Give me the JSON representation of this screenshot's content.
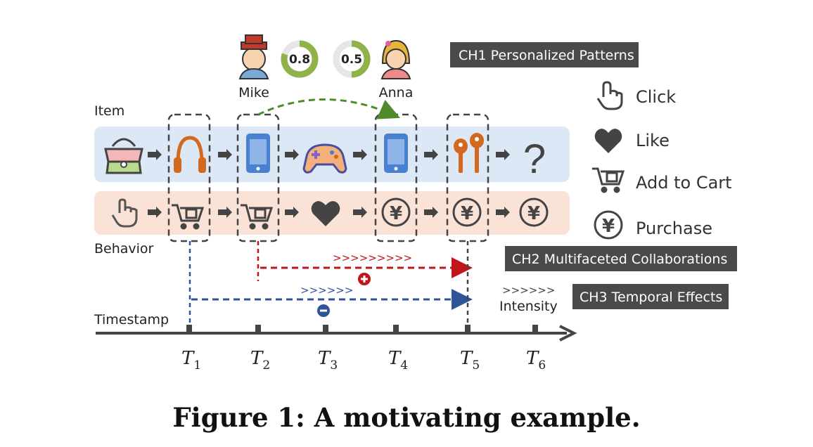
{
  "diagram": {
    "row_labels": {
      "item": "Item",
      "behavior": "Behavior",
      "timestamp": "Timestamp"
    },
    "users": [
      {
        "name": "Mike",
        "score": "0.8"
      },
      {
        "name": "Anna",
        "score": "0.5"
      }
    ],
    "item_sequence": [
      "handbag-icon",
      "headphones-icon",
      "phone-icon",
      "gamepad-icon",
      "phone-icon",
      "earbuds-icon",
      "question-mark-icon"
    ],
    "unknown_item": "?",
    "behavior_sequence": [
      "click-icon",
      "cart-icon",
      "cart-icon",
      "heart-icon",
      "purchase-icon",
      "purchase-icon",
      "purchase-icon"
    ],
    "challenges": [
      {
        "label": "CH1 Personalized Patterns"
      },
      {
        "label": "CH2 Multifaceted Collaborations"
      },
      {
        "label": "CH3 Temporal Effects"
      }
    ],
    "legend": [
      {
        "icon": "click-icon",
        "label": "Click"
      },
      {
        "icon": "heart-icon",
        "label": "Like"
      },
      {
        "icon": "cart-icon",
        "label": "Add to Cart"
      },
      {
        "icon": "purchase-icon",
        "label": "Purchase"
      }
    ],
    "intensity": {
      "chevrons": ">>>>>>",
      "label": "Intensity"
    },
    "red_chevrons": ">>>>>>>>>",
    "blue_chevrons": ">>>>>>",
    "timestamps": [
      {
        "base": "T",
        "sub": "1"
      },
      {
        "base": "T",
        "sub": "2"
      },
      {
        "base": "T",
        "sub": "3"
      },
      {
        "base": "T",
        "sub": "4"
      },
      {
        "base": "T",
        "sub": "5"
      },
      {
        "base": "T",
        "sub": "6"
      }
    ],
    "colors": {
      "item_band": "#dce8f5",
      "behavior_band": "#fbe2d6",
      "icon_gray": "#444444",
      "phone_blue": "#4a80d0",
      "orange": "#d2691e",
      "green_arrow": "#4f8a2c",
      "red_arrow": "#c0151b",
      "blue_arrow": "#2e5597",
      "donut_green": "#8fb24a"
    }
  },
  "caption": "Figure 1: A motivating example."
}
